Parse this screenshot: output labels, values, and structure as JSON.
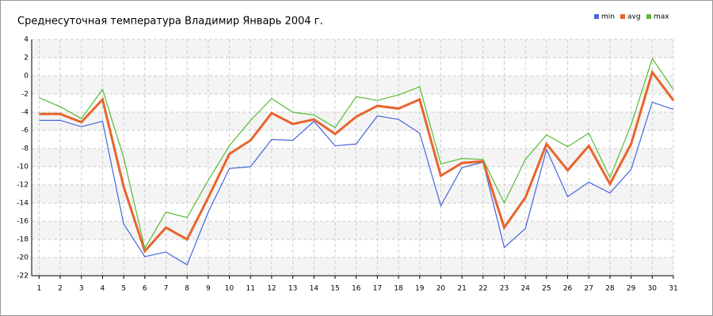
{
  "chart_data": {
    "type": "line",
    "title": "Среднесуточная температура Владимир  Январь 2004 г.",
    "x": [
      1,
      2,
      3,
      4,
      5,
      6,
      7,
      8,
      9,
      10,
      11,
      12,
      13,
      14,
      15,
      16,
      17,
      18,
      19,
      20,
      21,
      22,
      23,
      24,
      25,
      26,
      27,
      28,
      29,
      30,
      31
    ],
    "series": [
      {
        "name": "min",
        "color": "#4466dd",
        "values": [
          -4.9,
          -4.9,
          -5.6,
          -5.0,
          -16.3,
          -19.9,
          -19.4,
          -20.8,
          -15.0,
          -10.2,
          -10.0,
          -7.0,
          -7.1,
          -5.0,
          -7.7,
          -7.5,
          -4.4,
          -4.8,
          -6.3,
          -14.3,
          -10.1,
          -9.5,
          -18.9,
          -16.8,
          -8.1,
          -13.3,
          -11.7,
          -12.9,
          -10.3,
          -2.9,
          -3.7
        ]
      },
      {
        "name": "avg",
        "color": "#e8642c",
        "values": [
          -4.2,
          -4.2,
          -5.1,
          -2.6,
          -12.2,
          -19.3,
          -16.7,
          -18.0,
          -13.4,
          -8.6,
          -7.1,
          -4.1,
          -5.3,
          -4.8,
          -6.4,
          -4.5,
          -3.3,
          -3.6,
          -2.6,
          -11.0,
          -9.6,
          -9.4,
          -16.7,
          -13.4,
          -7.5,
          -10.4,
          -7.7,
          -11.9,
          -7.5,
          0.4,
          -2.7
        ]
      },
      {
        "name": "max",
        "color": "#55bb33",
        "values": [
          -2.4,
          -3.4,
          -4.7,
          -1.5,
          -9.0,
          -19.0,
          -15.0,
          -15.6,
          -11.5,
          -7.7,
          -4.9,
          -2.5,
          -4.0,
          -4.3,
          -5.7,
          -2.3,
          -2.7,
          -2.1,
          -1.2,
          -9.7,
          -9.1,
          -9.2,
          -14.0,
          -9.2,
          -6.5,
          -7.8,
          -6.3,
          -11.2,
          -5.4,
          1.9,
          -1.5
        ]
      }
    ],
    "xlim": [
      0.65,
      31
    ],
    "xticks": [
      1,
      2,
      3,
      4,
      5,
      6,
      7,
      8,
      9,
      10,
      11,
      12,
      13,
      14,
      15,
      16,
      17,
      18,
      19,
      20,
      21,
      22,
      23,
      24,
      25,
      26,
      27,
      28,
      29,
      30,
      31
    ],
    "ylim": [
      -22,
      4
    ],
    "yticks": [
      4,
      2,
      0,
      -2,
      -4,
      -6,
      -8,
      -10,
      -12,
      -14,
      -16,
      -18,
      -20,
      -22
    ],
    "grid": true,
    "legend": "top-right"
  }
}
